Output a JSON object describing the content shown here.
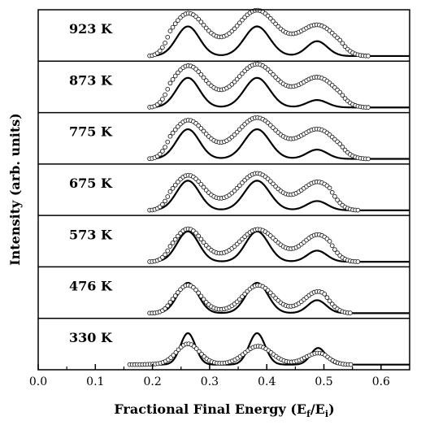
{
  "chart_data": {
    "type": "line",
    "xlabel": "Fractional Final Energy (E",
    "xlabel_sub1": "f",
    "xlabel_mid": "/E",
    "xlabel_sub2": "i",
    "xlabel_end": ")",
    "ylabel": "Intensity (arb. units)",
    "xlim": [
      0.0,
      0.65
    ],
    "x_ticks": [
      "0.0",
      "0.1",
      "0.2",
      "0.3",
      "0.4",
      "0.5",
      "0.6"
    ],
    "x_tick_values": [
      0.0,
      0.1,
      0.2,
      0.3,
      0.4,
      0.5,
      0.6
    ],
    "y_ticks": "none",
    "grid": false,
    "panels": [
      {
        "label": "923 K",
        "fit": {
          "peaks": [
            {
              "center": 0.262,
              "height": 0.8,
              "width": 0.02
            },
            {
              "center": 0.383,
              "height": 0.8,
              "width": 0.022
            },
            {
              "center": 0.488,
              "height": 0.4,
              "width": 0.018
            }
          ]
        },
        "data": {
          "range": [
            0.195,
            0.58
          ],
          "peaks": [
            {
              "center": 0.262,
              "height": 0.95,
              "width": 0.028
            },
            {
              "center": 0.383,
              "height": 0.95,
              "width": 0.032
            },
            {
              "center": 0.49,
              "height": 0.65,
              "width": 0.03
            }
          ],
          "base": 0.32
        }
      },
      {
        "label": "873 K",
        "fit": {
          "peaks": [
            {
              "center": 0.262,
              "height": 0.8,
              "width": 0.02
            },
            {
              "center": 0.383,
              "height": 0.8,
              "width": 0.022
            },
            {
              "center": 0.488,
              "height": 0.2,
              "width": 0.018
            }
          ]
        },
        "data": {
          "range": [
            0.195,
            0.58
          ],
          "peaks": [
            {
              "center": 0.262,
              "height": 0.95,
              "width": 0.028
            },
            {
              "center": 0.383,
              "height": 0.92,
              "width": 0.032
            },
            {
              "center": 0.49,
              "height": 0.65,
              "width": 0.03
            }
          ],
          "base": 0.28
        }
      },
      {
        "label": "775 K",
        "fit": {
          "peaks": [
            {
              "center": 0.262,
              "height": 0.8,
              "width": 0.02
            },
            {
              "center": 0.383,
              "height": 0.8,
              "width": 0.022
            },
            {
              "center": 0.488,
              "height": 0.25,
              "width": 0.018
            }
          ]
        },
        "data": {
          "range": [
            0.195,
            0.58
          ],
          "peaks": [
            {
              "center": 0.262,
              "height": 0.88,
              "width": 0.028
            },
            {
              "center": 0.383,
              "height": 0.88,
              "width": 0.032
            },
            {
              "center": 0.49,
              "height": 0.65,
              "width": 0.03
            }
          ],
          "base": 0.26
        }
      },
      {
        "label": "675 K",
        "fit": {
          "peaks": [
            {
              "center": 0.262,
              "height": 0.8,
              "width": 0.02
            },
            {
              "center": 0.383,
              "height": 0.8,
              "width": 0.022
            },
            {
              "center": 0.488,
              "height": 0.25,
              "width": 0.018
            }
          ]
        },
        "data": {
          "range": [
            0.195,
            0.56
          ],
          "peaks": [
            {
              "center": 0.262,
              "height": 0.82,
              "width": 0.026
            },
            {
              "center": 0.383,
              "height": 0.82,
              "width": 0.03
            },
            {
              "center": 0.49,
              "height": 0.65,
              "width": 0.028
            }
          ],
          "base": 0.2
        }
      },
      {
        "label": "573 K",
        "fit": {
          "peaks": [
            {
              "center": 0.262,
              "height": 0.82,
              "width": 0.019
            },
            {
              "center": 0.383,
              "height": 0.82,
              "width": 0.02
            },
            {
              "center": 0.488,
              "height": 0.3,
              "width": 0.017
            }
          ]
        },
        "data": {
          "range": [
            0.195,
            0.56
          ],
          "peaks": [
            {
              "center": 0.262,
              "height": 0.8,
              "width": 0.024
            },
            {
              "center": 0.385,
              "height": 0.75,
              "width": 0.03
            },
            {
              "center": 0.49,
              "height": 0.65,
              "width": 0.026
            }
          ],
          "base": 0.14
        }
      },
      {
        "label": "476 K",
        "fit": {
          "peaks": [
            {
              "center": 0.262,
              "height": 0.82,
              "width": 0.018
            },
            {
              "center": 0.383,
              "height": 0.82,
              "width": 0.019
            },
            {
              "center": 0.488,
              "height": 0.35,
              "width": 0.016
            }
          ]
        },
        "data": {
          "range": [
            0.195,
            0.55
          ],
          "peaks": [
            {
              "center": 0.262,
              "height": 0.72,
              "width": 0.022
            },
            {
              "center": 0.385,
              "height": 0.7,
              "width": 0.026
            },
            {
              "center": 0.49,
              "height": 0.55,
              "width": 0.024
            }
          ],
          "base": 0.06
        }
      },
      {
        "label": "330 K",
        "fit": {
          "peaks": [
            {
              "center": 0.262,
              "height": 0.85,
              "width": 0.013
            },
            {
              "center": 0.383,
              "height": 0.85,
              "width": 0.014
            },
            {
              "center": 0.49,
              "height": 0.45,
              "width": 0.013
            }
          ]
        },
        "data": {
          "range": [
            0.16,
            0.55
          ],
          "peaks": [
            {
              "center": 0.262,
              "height": 0.55,
              "width": 0.02
            },
            {
              "center": 0.385,
              "height": 0.48,
              "width": 0.024
            },
            {
              "center": 0.49,
              "height": 0.3,
              "width": 0.022
            }
          ],
          "base": 0.02
        }
      }
    ]
  }
}
